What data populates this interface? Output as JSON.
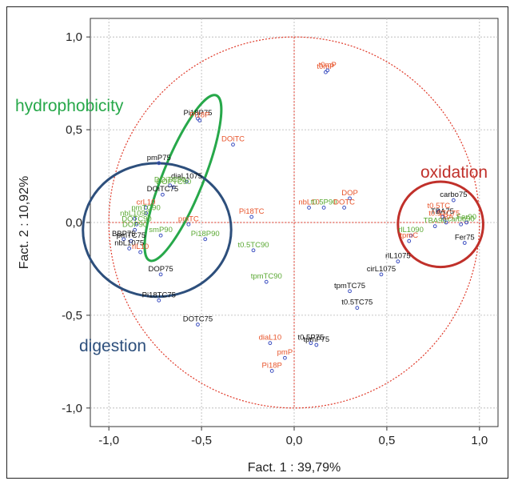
{
  "chart_data": {
    "type": "scatter",
    "xlabel": "Fact. 1  : 39,79%",
    "ylabel": "Fact. 2  : 10,92%",
    "xlim": [
      -1.1,
      1.1
    ],
    "ylim": [
      -1.1,
      1.1
    ],
    "xticks": [
      -1.0,
      -0.5,
      0.0,
      0.5,
      1.0
    ],
    "yticks": [
      -1.0,
      -0.5,
      0.0,
      0.5,
      1.0
    ],
    "xtick_labels": [
      "-1,0",
      "-0,5",
      "0,0",
      "0,5",
      "1,0"
    ],
    "ytick_labels": [
      "1,0",
      "0,5",
      "0,0",
      "-0,5",
      "-1,0"
    ],
    "grid": true,
    "unit_circle": true,
    "colors": {
      "red": "#e8542b",
      "green": "#5aa832",
      "black": "#111111",
      "marker": "#3b4ec0",
      "hydrophobicity": "#27a84a",
      "digestion": "#2d4f7c",
      "oxidation": "#c0302a"
    },
    "group_labels": {
      "hydrophobicity": "hydrophobicity",
      "digestion": "digestion",
      "oxidation": "oxidation"
    },
    "groups": [
      {
        "name": "hydrophobicity",
        "center": [
          -0.6,
          0.24
        ],
        "rx": 0.11,
        "ry": 0.48,
        "angle_deg": 22
      },
      {
        "name": "digestion",
        "center": [
          -0.74,
          -0.04
        ],
        "rx": 0.4,
        "ry": 0.36,
        "angle_deg": 0
      },
      {
        "name": "oxidation",
        "center": [
          0.79,
          -0.01
        ],
        "rx": 0.23,
        "ry": 0.23,
        "angle_deg": 0
      }
    ],
    "points": [
      {
        "label": "t0mP",
        "x": 0.17,
        "y": 0.81,
        "color": "red"
      },
      {
        "label": "t0mP",
        "x": 0.18,
        "y": 0.82,
        "color": "red"
      },
      {
        "label": "Pi18P75",
        "x": -0.52,
        "y": 0.56,
        "color": "black"
      },
      {
        "label": "Pi18P",
        "x": -0.51,
        "y": 0.55,
        "color": "red"
      },
      {
        "label": "DOiTC",
        "x": -0.33,
        "y": 0.42,
        "color": "red"
      },
      {
        "label": "pmP75",
        "x": -0.73,
        "y": 0.32,
        "color": "black"
      },
      {
        "label": "diaL1075",
        "x": -0.58,
        "y": 0.22,
        "color": "black"
      },
      {
        "label": "DOiTC90",
        "x": -0.67,
        "y": 0.2,
        "color": "green"
      },
      {
        "label": "DOPTC90",
        "x": -0.65,
        "y": 0.19,
        "color": "green"
      },
      {
        "label": "DOiTC75",
        "x": -0.71,
        "y": 0.15,
        "color": "black"
      },
      {
        "label": "DOP",
        "x": 0.3,
        "y": 0.13,
        "color": "red"
      },
      {
        "label": "nbL10",
        "x": 0.08,
        "y": 0.08,
        "color": "red"
      },
      {
        "label": "t0.5P90",
        "x": 0.16,
        "y": 0.08,
        "color": "green"
      },
      {
        "label": "DOTC",
        "x": 0.27,
        "y": 0.08,
        "color": "red"
      },
      {
        "label": "carbo75",
        "x": 0.86,
        "y": 0.12,
        "color": "black"
      },
      {
        "label": "t0.5TC",
        "x": 0.78,
        "y": 0.06,
        "color": "red"
      },
      {
        "label": "TBA75",
        "x": 0.8,
        "y": 0.03,
        "color": "black"
      },
      {
        "label": "t0.5TC75",
        "x": 0.81,
        "y": 0.02,
        "color": "red"
      },
      {
        "label": "TBA",
        "x": 0.82,
        "y": 0.0,
        "color": "red"
      },
      {
        "label": "Fer90",
        "x": 0.93,
        "y": 0.0,
        "color": "green"
      },
      {
        "label": "carbo90",
        "x": 0.9,
        "y": -0.01,
        "color": "green"
      },
      {
        "label": "TBA90",
        "x": 0.76,
        "y": -0.02,
        "color": "green"
      },
      {
        "label": "Fer75",
        "x": 0.92,
        "y": -0.11,
        "color": "black"
      },
      {
        "label": "crL10",
        "x": -0.8,
        "y": 0.08,
        "color": "red"
      },
      {
        "label": "pmTC90",
        "x": -0.8,
        "y": 0.05,
        "color": "green"
      },
      {
        "label": "pmTC",
        "x": -0.57,
        "y": -0.01,
        "color": "red"
      },
      {
        "label": "Pi18TC",
        "x": -0.23,
        "y": 0.03,
        "color": "red"
      },
      {
        "label": "nbL1090",
        "x": -0.86,
        "y": 0.02,
        "color": "green"
      },
      {
        "label": "DOTC90",
        "x": -0.85,
        "y": -0.01,
        "color": "green"
      },
      {
        "label": "DOP90",
        "x": -0.86,
        "y": -0.04,
        "color": "green"
      },
      {
        "label": "smP90",
        "x": -0.72,
        "y": -0.07,
        "color": "green"
      },
      {
        "label": "BBP75",
        "x": -0.92,
        "y": -0.09,
        "color": "black"
      },
      {
        "label": "pmTC75",
        "x": -0.88,
        "y": -0.1,
        "color": "black"
      },
      {
        "label": "nbL1075",
        "x": -0.89,
        "y": -0.14,
        "color": "black"
      },
      {
        "label": "rlL10",
        "x": -0.83,
        "y": -0.16,
        "color": "red"
      },
      {
        "label": "Pi18P90",
        "x": -0.48,
        "y": -0.09,
        "color": "green"
      },
      {
        "label": "t0.5TC90",
        "x": -0.22,
        "y": -0.15,
        "color": "green"
      },
      {
        "label": "DOP75",
        "x": -0.72,
        "y": -0.28,
        "color": "black"
      },
      {
        "label": "tpmTC90",
        "x": -0.15,
        "y": -0.32,
        "color": "green"
      },
      {
        "label": "rlL1090",
        "x": 0.63,
        "y": -0.07,
        "color": "green"
      },
      {
        "label": "tpmC",
        "x": 0.62,
        "y": -0.1,
        "color": "red"
      },
      {
        "label": "rlL1075",
        "x": 0.56,
        "y": -0.21,
        "color": "black"
      },
      {
        "label": "cirL1075",
        "x": 0.47,
        "y": -0.28,
        "color": "black"
      },
      {
        "label": "Pi18TC75",
        "x": -0.73,
        "y": -0.42,
        "color": "black"
      },
      {
        "label": "tpmTC75",
        "x": 0.3,
        "y": -0.37,
        "color": "black"
      },
      {
        "label": "t0.5TC75",
        "x": 0.34,
        "y": -0.46,
        "color": "black"
      },
      {
        "label": "DOTC75",
        "x": -0.52,
        "y": -0.55,
        "color": "black"
      },
      {
        "label": "diaL10",
        "x": -0.13,
        "y": -0.65,
        "color": "red"
      },
      {
        "label": "t0.5P75",
        "x": 0.09,
        "y": -0.65,
        "color": "black"
      },
      {
        "label": "tpmP75",
        "x": 0.12,
        "y": -0.66,
        "color": "black"
      },
      {
        "label": "pmP",
        "x": -0.05,
        "y": -0.73,
        "color": "red"
      },
      {
        "label": "Pi18P",
        "x": -0.12,
        "y": -0.8,
        "color": "red"
      }
    ]
  }
}
